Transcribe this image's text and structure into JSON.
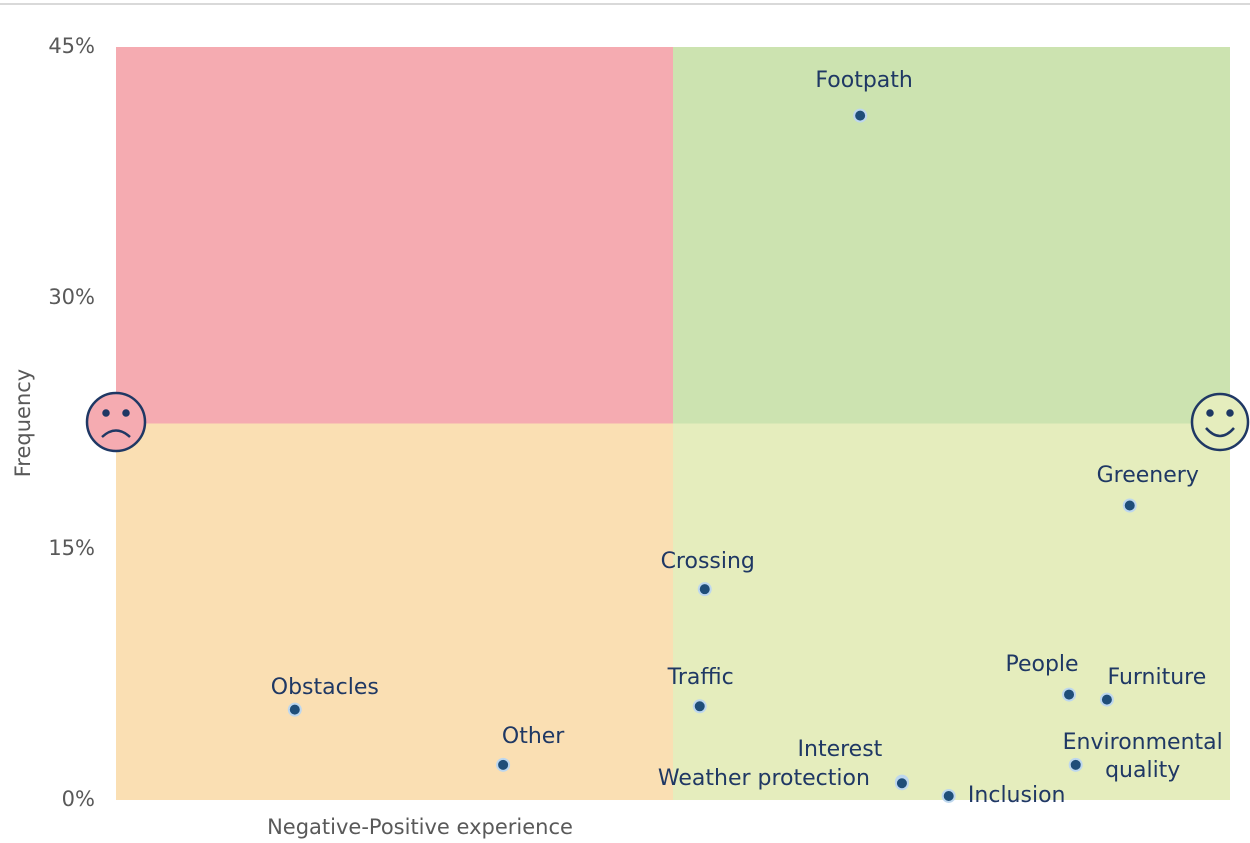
{
  "chart_data": {
    "type": "scatter",
    "x_label": "Negative-Positive experience",
    "y_label": "Frequency",
    "labels": [
      "Footpath",
      "Greenery",
      "Crossing",
      "Obstacles",
      "Traffic",
      "Other",
      "People",
      "Furniture",
      "Environmental quality",
      "Interest",
      "Weather protection",
      "Inclusion"
    ],
    "x": [
      0.336,
      0.82,
      0.057,
      -0.679,
      0.048,
      -0.305,
      0.711,
      0.779,
      0.723,
      0.411,
      0.411,
      0.495
    ],
    "values": [
      40.9,
      17.6,
      12.6,
      5.4,
      5.6,
      2.1,
      6.3,
      6.0,
      2.1,
      1.1,
      1.0,
      0.24
    ],
    "color": "#1f4e79",
    "xlim": [
      -1,
      1
    ],
    "ylim": [
      0,
      45
    ],
    "yticks": [
      {
        "value": 0,
        "label": "0%"
      },
      {
        "value": 15,
        "label": "15%"
      },
      {
        "value": 30,
        "label": "30%"
      },
      {
        "value": 45,
        "label": "45%"
      }
    ],
    "quadrant_colors": [
      "#f5abb1",
      "#cce3b0",
      "#fadfb3",
      "#e5edbd"
    ]
  }
}
